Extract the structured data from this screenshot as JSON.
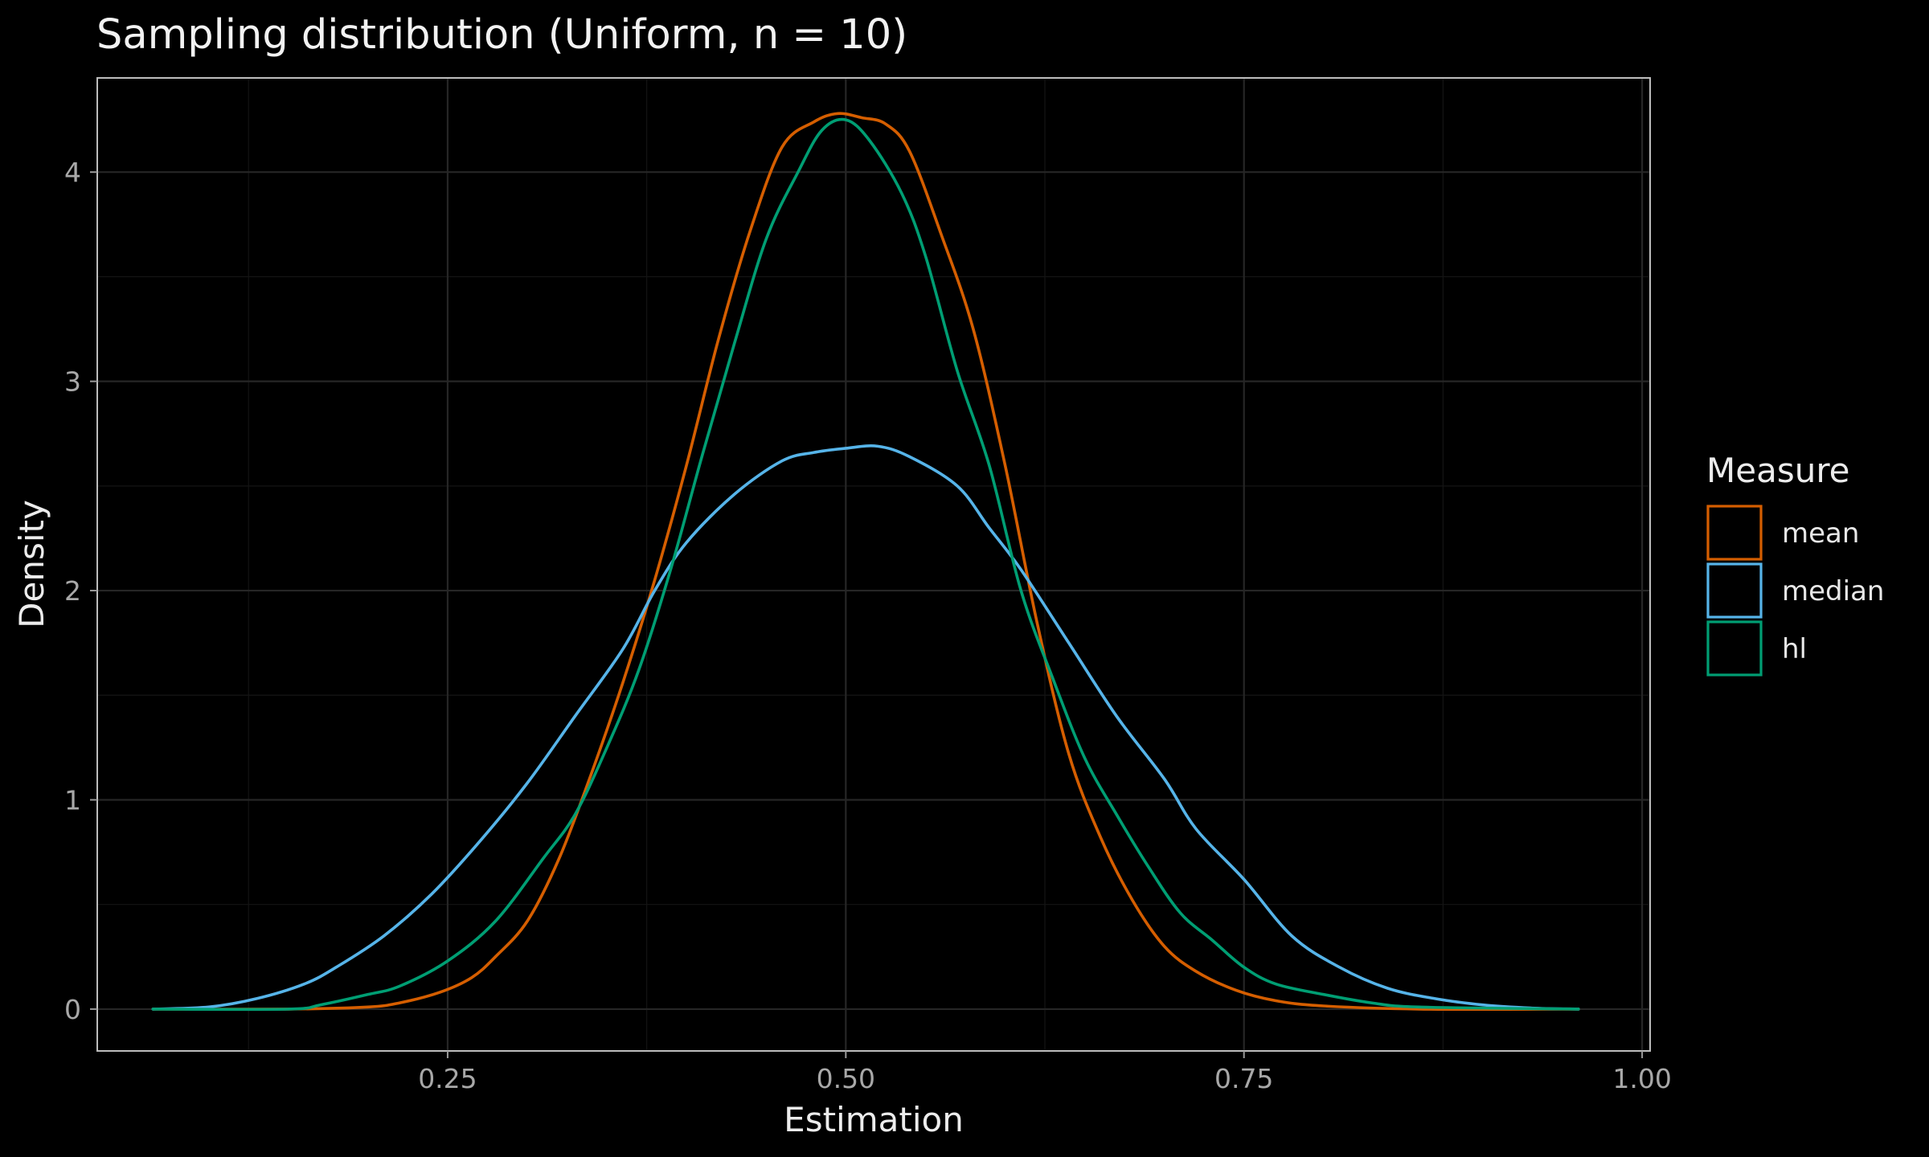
{
  "chart_data": {
    "type": "line",
    "title": "Sampling distribution (Uniform, n = 10)",
    "xlabel": "Estimation",
    "ylabel": "Density",
    "xlim": [
      0.03,
      1.005
    ],
    "ylim": [
      -0.2,
      4.45
    ],
    "x_ticks": [
      0.25,
      0.5,
      0.75,
      1.0
    ],
    "x_tick_labels": [
      "0.25",
      "0.50",
      "0.75",
      "1.00"
    ],
    "y_ticks": [
      0,
      1,
      2,
      3,
      4
    ],
    "y_tick_labels": [
      "0",
      "1",
      "2",
      "3",
      "4"
    ],
    "grid": true,
    "legend": {
      "title": "Measure",
      "position": "right"
    },
    "series": [
      {
        "name": "mean",
        "color": "#D55E00",
        "points": [
          [
            0.065,
            0
          ],
          [
            0.15,
            0
          ],
          [
            0.2,
            0.01
          ],
          [
            0.22,
            0.03
          ],
          [
            0.245,
            0.08
          ],
          [
            0.265,
            0.15
          ],
          [
            0.28,
            0.25
          ],
          [
            0.3,
            0.42
          ],
          [
            0.32,
            0.72
          ],
          [
            0.34,
            1.12
          ],
          [
            0.36,
            1.56
          ],
          [
            0.38,
            2.05
          ],
          [
            0.4,
            2.6
          ],
          [
            0.42,
            3.2
          ],
          [
            0.44,
            3.72
          ],
          [
            0.46,
            4.12
          ],
          [
            0.48,
            4.24
          ],
          [
            0.495,
            4.28
          ],
          [
            0.51,
            4.26
          ],
          [
            0.525,
            4.23
          ],
          [
            0.54,
            4.1
          ],
          [
            0.56,
            3.7
          ],
          [
            0.58,
            3.25
          ],
          [
            0.6,
            2.6
          ],
          [
            0.62,
            1.85
          ],
          [
            0.64,
            1.22
          ],
          [
            0.66,
            0.82
          ],
          [
            0.68,
            0.52
          ],
          [
            0.7,
            0.3
          ],
          [
            0.72,
            0.18
          ],
          [
            0.745,
            0.09
          ],
          [
            0.77,
            0.04
          ],
          [
            0.8,
            0.015
          ],
          [
            0.86,
            0
          ],
          [
            0.96,
            0
          ]
        ]
      },
      {
        "name": "median",
        "color": "#56B4E9",
        "points": [
          [
            0.065,
            0
          ],
          [
            0.1,
            0.01
          ],
          [
            0.13,
            0.05
          ],
          [
            0.16,
            0.12
          ],
          [
            0.18,
            0.2
          ],
          [
            0.21,
            0.35
          ],
          [
            0.24,
            0.55
          ],
          [
            0.27,
            0.8
          ],
          [
            0.3,
            1.08
          ],
          [
            0.33,
            1.4
          ],
          [
            0.36,
            1.72
          ],
          [
            0.38,
            2.0
          ],
          [
            0.4,
            2.23
          ],
          [
            0.43,
            2.46
          ],
          [
            0.46,
            2.62
          ],
          [
            0.48,
            2.66
          ],
          [
            0.5,
            2.68
          ],
          [
            0.52,
            2.69
          ],
          [
            0.54,
            2.64
          ],
          [
            0.57,
            2.5
          ],
          [
            0.59,
            2.3
          ],
          [
            0.61,
            2.1
          ],
          [
            0.64,
            1.75
          ],
          [
            0.67,
            1.4
          ],
          [
            0.7,
            1.1
          ],
          [
            0.72,
            0.86
          ],
          [
            0.75,
            0.62
          ],
          [
            0.78,
            0.35
          ],
          [
            0.81,
            0.2
          ],
          [
            0.84,
            0.1
          ],
          [
            0.87,
            0.05
          ],
          [
            0.9,
            0.02
          ],
          [
            0.93,
            0.005
          ],
          [
            0.96,
            0
          ]
        ]
      },
      {
        "name": "hl",
        "color": "#009E73",
        "points": [
          [
            0.065,
            0
          ],
          [
            0.15,
            0
          ],
          [
            0.17,
            0.02
          ],
          [
            0.2,
            0.07
          ],
          [
            0.22,
            0.11
          ],
          [
            0.25,
            0.23
          ],
          [
            0.28,
            0.42
          ],
          [
            0.31,
            0.72
          ],
          [
            0.33,
            0.93
          ],
          [
            0.35,
            1.25
          ],
          [
            0.37,
            1.62
          ],
          [
            0.39,
            2.1
          ],
          [
            0.41,
            2.65
          ],
          [
            0.43,
            3.18
          ],
          [
            0.45,
            3.68
          ],
          [
            0.47,
            4.0
          ],
          [
            0.485,
            4.2
          ],
          [
            0.5,
            4.25
          ],
          [
            0.515,
            4.15
          ],
          [
            0.535,
            3.9
          ],
          [
            0.55,
            3.6
          ],
          [
            0.57,
            3.05
          ],
          [
            0.59,
            2.6
          ],
          [
            0.61,
            2.0
          ],
          [
            0.63,
            1.58
          ],
          [
            0.65,
            1.2
          ],
          [
            0.67,
            0.93
          ],
          [
            0.69,
            0.68
          ],
          [
            0.71,
            0.46
          ],
          [
            0.73,
            0.33
          ],
          [
            0.75,
            0.2
          ],
          [
            0.77,
            0.12
          ],
          [
            0.8,
            0.07
          ],
          [
            0.83,
            0.03
          ],
          [
            0.86,
            0.01
          ],
          [
            0.96,
            0
          ]
        ]
      }
    ]
  }
}
